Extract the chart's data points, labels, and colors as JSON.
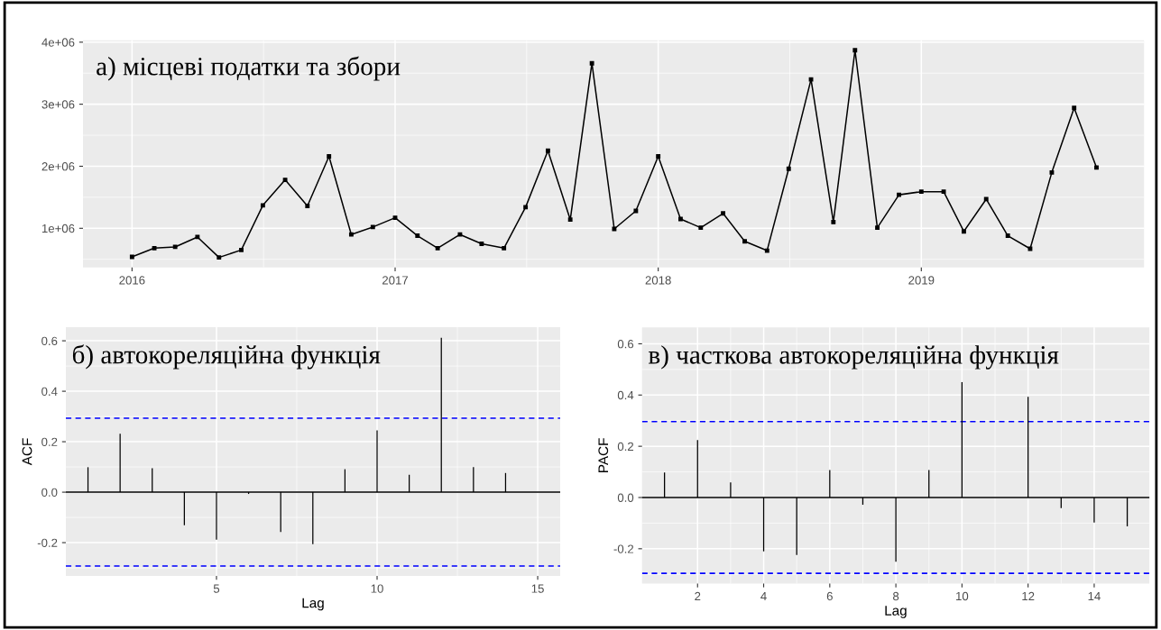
{
  "chart_data": [
    {
      "type": "line",
      "title": "а) місцеві податки та збори",
      "marker": "square",
      "line_style": "solid",
      "grid": true,
      "legend": false,
      "x": [
        "2016-01",
        "2016-02",
        "2016-03",
        "2016-04",
        "2016-05",
        "2016-06",
        "2016-07",
        "2016-08",
        "2016-09",
        "2016-10",
        "2016-11",
        "2016-12",
        "2017-01",
        "2017-02",
        "2017-03",
        "2017-04",
        "2017-05",
        "2017-06",
        "2017-07",
        "2017-08",
        "2017-09",
        "2017-10",
        "2017-11",
        "2017-12",
        "2018-01",
        "2018-02",
        "2018-03",
        "2018-04",
        "2018-05",
        "2018-06",
        "2018-07",
        "2018-08",
        "2018-09",
        "2018-10",
        "2018-11",
        "2018-12",
        "2019-01",
        "2019-02",
        "2019-03",
        "2019-04",
        "2019-05",
        "2019-06",
        "2019-07",
        "2019-08",
        "2019-09"
      ],
      "series": [
        {
          "color": "#000000",
          "values": [
            540000,
            680000,
            700000,
            860000,
            530000,
            650000,
            1370000,
            1780000,
            1360000,
            2160000,
            900000,
            1020000,
            1170000,
            880000,
            680000,
            900000,
            750000,
            680000,
            1340000,
            2250000,
            1140000,
            3660000,
            990000,
            1280000,
            2160000,
            1150000,
            1010000,
            1240000,
            790000,
            640000,
            1960000,
            3400000,
            1100000,
            3870000,
            1010000,
            1540000,
            1590000,
            1590000,
            950000,
            1470000,
            880000,
            670000,
            1900000,
            2940000,
            1980000
          ]
        }
      ],
      "xlim": [
        "2015-10-25",
        "2019-11-06"
      ],
      "xticks": [
        {
          "value": "2016",
          "label": "2016"
        },
        {
          "value": "2017",
          "label": "2017"
        },
        {
          "value": "2018",
          "label": "2018"
        },
        {
          "value": "2019",
          "label": "2019"
        }
      ],
      "ylim": [
        367000,
        4030000
      ],
      "yticks": [
        {
          "value": 1000000,
          "label": "1e+06"
        },
        {
          "value": 2000000,
          "label": "2e+06"
        },
        {
          "value": 3000000,
          "label": "3e+06"
        },
        {
          "value": 4000000,
          "label": "4e+06"
        }
      ]
    },
    {
      "type": "bar",
      "title": "б) автокореляційна функція",
      "xlabel": "Lag",
      "ylabel": "ACF",
      "grid": true,
      "legend": false,
      "x": [
        1,
        2,
        3,
        4,
        5,
        6,
        7,
        8,
        9,
        10,
        11,
        12,
        13,
        14
      ],
      "series": [
        {
          "color": "#000000",
          "values": [
            0.099,
            0.232,
            0.095,
            -0.131,
            -0.188,
            -0.007,
            -0.158,
            -0.206,
            0.091,
            0.245,
            0.069,
            0.612,
            0.099,
            0.076
          ]
        }
      ],
      "xlim": [
        0.31,
        15.7
      ],
      "xticks": [
        5,
        10,
        15
      ],
      "ylim": [
        -0.332,
        0.654
      ],
      "yticks": [
        {
          "value": -0.2,
          "label": "-0.2"
        },
        {
          "value": 0,
          "label": "0.0"
        },
        {
          "value": 0.2,
          "label": "0.2"
        },
        {
          "value": 0.4,
          "label": "0.4"
        },
        {
          "value": 0.6,
          "label": "0.6"
        }
      ],
      "ref_lines": [
        {
          "axis": "y",
          "value": 0,
          "color": "#000000",
          "line_style": "solid"
        },
        {
          "axis": "y",
          "value": 0.293,
          "color": "#0000ff",
          "line_style": "dashed"
        },
        {
          "axis": "y",
          "value": -0.293,
          "color": "#0000ff",
          "line_style": "dashed"
        }
      ]
    },
    {
      "type": "bar",
      "title": "в) часткова автокореляційна функція",
      "xlabel": "Lag",
      "ylabel": "PACF",
      "grid": true,
      "legend": false,
      "x": [
        1,
        2,
        3,
        4,
        5,
        6,
        7,
        8,
        9,
        10,
        11,
        12,
        13,
        14,
        15
      ],
      "series": [
        {
          "color": "#000000",
          "values": [
            0.098,
            0.224,
            0.059,
            -0.21,
            -0.224,
            0.107,
            -0.028,
            -0.251,
            0.107,
            0.45,
            null,
            0.393,
            -0.041,
            -0.098,
            -0.113
          ]
        }
      ],
      "xlim": [
        0.32,
        15.67
      ],
      "xticks": [
        2,
        4,
        6,
        8,
        10,
        12,
        14
      ],
      "ylim": [
        -0.336,
        0.664
      ],
      "yticks": [
        {
          "value": -0.2,
          "label": "-0.2"
        },
        {
          "value": 0,
          "label": "0.0"
        },
        {
          "value": 0.2,
          "label": "0.2"
        },
        {
          "value": 0.4,
          "label": "0.4"
        },
        {
          "value": 0.6,
          "label": "0.6"
        }
      ],
      "ref_lines": [
        {
          "axis": "y",
          "value": 0,
          "color": "#000000",
          "line_style": "solid"
        },
        {
          "axis": "y",
          "value": 0.296,
          "color": "#0000ff",
          "line_style": "dashed"
        },
        {
          "axis": "y",
          "value": -0.296,
          "color": "#0000ff",
          "line_style": "dashed"
        }
      ]
    }
  ]
}
